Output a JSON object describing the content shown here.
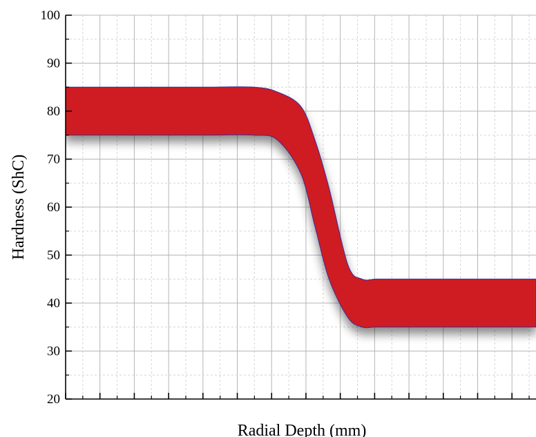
{
  "chart_data": {
    "type": "area",
    "title": "",
    "xlabel": "Radial Depth (mm)",
    "ylabel": "Hardness (ShC)",
    "ylim": [
      20,
      100
    ],
    "yticks": [
      20,
      30,
      40,
      50,
      60,
      70,
      80,
      90,
      100
    ],
    "grid": true,
    "band_color": "#ce1b22",
    "band_edge_color": "#3a2a9a",
    "series": [
      {
        "x": [
          0,
          10,
          20,
          30,
          40,
          45,
          50,
          53,
          56,
          60,
          63,
          66,
          70,
          80,
          90,
          100
        ],
        "upper": [
          85,
          85,
          85,
          85,
          85,
          84,
          81,
          74,
          64,
          48,
          45,
          45,
          45,
          45,
          45,
          45
        ],
        "lower": [
          75,
          75,
          75,
          75,
          75,
          74,
          67,
          56,
          45,
          37,
          35,
          35,
          35,
          35,
          35,
          35
        ]
      }
    ]
  }
}
